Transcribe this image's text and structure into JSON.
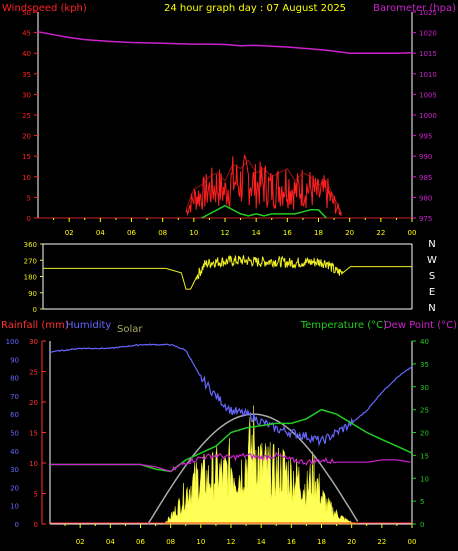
{
  "title": "24 hour graph day : 07 August 2025",
  "colors": {
    "windspeed": "#ff2020",
    "gust_green": "#22cc22",
    "barometer": "#cc22cc",
    "winddir": "#eeee22",
    "rainfall": "#ff3030",
    "humidity": "#6666ff",
    "solar": "#aaaa66",
    "solar_fill": "#ffff55",
    "temperature": "#22cc22",
    "dewpoint": "#cc22cc",
    "theory_curve": "#aaaaaa",
    "axis": "#ffffff",
    "grid": "#cc2222",
    "ticks": "#ffff00"
  },
  "chart_data": [
    {
      "type": "line",
      "name": "wind-baro",
      "ylabel_left": "Windspeed (kph)",
      "ylabel_right": "Barometer (hpa)",
      "left_ticks": [
        "50",
        "45",
        "40",
        "35",
        "30",
        "25",
        "20",
        "15",
        "10",
        "5",
        "0"
      ],
      "right_ticks": [
        "1025",
        "1020",
        "1015",
        "1010",
        "1005",
        "1000",
        "995",
        "990",
        "985",
        "980",
        "975"
      ],
      "ylim_left": [
        0,
        50
      ],
      "ylim_right": [
        975,
        1025
      ],
      "x_ticks": [
        "02",
        "04",
        "06",
        "08",
        "10",
        "12",
        "14",
        "16",
        "18",
        "20",
        "22",
        "00"
      ],
      "series": [
        {
          "name": "Barometer",
          "x": [
            0,
            1,
            2,
            3,
            4,
            5,
            6,
            7,
            8,
            9,
            10,
            11,
            12,
            13,
            14,
            15,
            16,
            17,
            18,
            19,
            20,
            21,
            22,
            23,
            24
          ],
          "values": [
            1020.2,
            1019.5,
            1018.8,
            1018.3,
            1018.0,
            1017.8,
            1017.6,
            1017.5,
            1017.4,
            1017.3,
            1017.2,
            1017.2,
            1017.1,
            1016.8,
            1016.9,
            1016.7,
            1016.5,
            1016.2,
            1015.9,
            1015.5,
            1015.0,
            1015.0,
            1015.0,
            1015.0,
            1015.1
          ]
        },
        {
          "name": "Windspeed",
          "x": [
            9.5,
            10,
            10.5,
            11,
            11.5,
            12,
            12.5,
            13,
            13.5,
            14,
            14.5,
            15,
            15.5,
            16,
            16.5,
            17,
            17.5,
            18,
            18.5,
            19,
            19.5
          ],
          "values": [
            2,
            7,
            8,
            10,
            11,
            9,
            13,
            12,
            14,
            11,
            12,
            10,
            11,
            12,
            9,
            11,
            10,
            8,
            9,
            5,
            1
          ]
        },
        {
          "name": "Gust",
          "x": [
            10.5,
            11,
            11.5,
            12,
            12.5,
            13,
            13.5,
            14,
            14.5,
            15,
            15.5,
            16,
            16.5,
            17,
            17.5,
            18,
            18.5
          ],
          "values": [
            0,
            1,
            2,
            3,
            2,
            1,
            0.5,
            1,
            0.5,
            1,
            1,
            1,
            1,
            1.5,
            2,
            2,
            0
          ]
        }
      ]
    },
    {
      "type": "line",
      "name": "wind-direction",
      "left_ticks": [
        "360",
        "270",
        "180",
        "90",
        "0"
      ],
      "right_labels": [
        "N",
        "W",
        "S",
        "E",
        "N"
      ],
      "ylim": [
        0,
        360
      ],
      "series": [
        {
          "name": "Wind direction",
          "x": [
            0,
            2,
            4,
            6,
            8,
            9,
            9.3,
            9.6,
            10,
            10.5,
            11,
            12,
            13,
            14,
            15,
            16,
            17,
            18,
            18.5,
            19,
            19.5,
            20,
            21,
            22,
            23,
            24
          ],
          "values": [
            225,
            225,
            225,
            225,
            225,
            200,
            110,
            110,
            180,
            245,
            260,
            265,
            270,
            260,
            265,
            255,
            260,
            260,
            255,
            210,
            200,
            235,
            235,
            235,
            235,
            235
          ]
        }
      ]
    },
    {
      "type": "line",
      "name": "rain-humidity-temp",
      "ylabel_rain": "Rainfall (mm)",
      "ylabel_humidity": "Humidity",
      "ylabel_solar": "Solar",
      "ylabel_temp": "Temperature (°C)",
      "ylabel_dew": "Dew Point (°C)",
      "humidity_ticks": [
        "100",
        "90",
        "80",
        "70",
        "60",
        "50",
        "40",
        "30",
        "20",
        "10",
        "0"
      ],
      "rain_ticks": [
        "30",
        "25",
        "20",
        "15",
        "10",
        "5",
        "0"
      ],
      "temp_ticks": [
        "40",
        "35",
        "30",
        "25",
        "20",
        "15",
        "10",
        "5",
        "0"
      ],
      "ylim_humidity": [
        0,
        100
      ],
      "ylim_rain": [
        0,
        30
      ],
      "ylim_temp": [
        0,
        40
      ],
      "x_ticks": [
        "02",
        "04",
        "06",
        "08",
        "10",
        "12",
        "14",
        "16",
        "18",
        "20",
        "22",
        "00"
      ],
      "series": [
        {
          "name": "Humidity",
          "x": [
            0,
            1,
            2,
            3,
            4,
            5,
            6,
            7,
            8,
            9,
            10,
            11,
            12,
            13,
            14,
            15,
            16,
            17,
            18,
            19,
            20,
            21,
            22,
            23,
            24
          ],
          "values": [
            94,
            95,
            96,
            96,
            96,
            97,
            98,
            98,
            98,
            95,
            80,
            70,
            62,
            60,
            56,
            52,
            50,
            48,
            45,
            50,
            55,
            62,
            72,
            80,
            86
          ]
        },
        {
          "name": "Temperature",
          "x": [
            0,
            2,
            4,
            6,
            7,
            8,
            9,
            10,
            11,
            12,
            13,
            14,
            15,
            16,
            17,
            18,
            19,
            20,
            21,
            22,
            23,
            24
          ],
          "values": [
            13,
            13,
            13,
            13,
            12,
            11.5,
            14,
            15.5,
            17,
            20,
            21,
            21.5,
            22,
            22,
            23,
            25,
            24,
            22,
            20,
            18.5,
            17,
            15.5
          ]
        },
        {
          "name": "Dew Point",
          "x": [
            0,
            2,
            4,
            6,
            7,
            8,
            9,
            10,
            11,
            12,
            13,
            14,
            15,
            16,
            17,
            18,
            19,
            20,
            21,
            22,
            23,
            24
          ],
          "values": [
            13,
            13,
            13,
            13,
            12.5,
            11.5,
            13.5,
            14.5,
            15,
            14.5,
            15,
            14.5,
            15,
            14,
            13.5,
            14,
            13.5,
            13.5,
            13.5,
            14,
            14,
            13.5
          ]
        },
        {
          "name": "Theoretical solar",
          "x": [
            6.5,
            8,
            9.5,
            11,
            12.5,
            13.5,
            14.5,
            16,
            17.5,
            19,
            20.5
          ],
          "values": [
            0,
            4,
            10,
            18,
            23,
            24,
            23,
            19,
            11,
            4,
            0
          ]
        },
        {
          "name": "Solar",
          "x": [
            7.5,
            8,
            8.5,
            9,
            9.5,
            10,
            10.5,
            11,
            11.5,
            12,
            12.5,
            13,
            13.5,
            14,
            14.5,
            15,
            15.5,
            16,
            16.5,
            17,
            17.5,
            18,
            18.5,
            19,
            19.5,
            20,
            20.5
          ],
          "values": [
            0,
            2,
            5,
            9,
            12,
            14,
            13,
            15,
            14,
            17,
            14,
            18,
            24,
            17,
            16,
            15,
            16,
            14,
            13,
            10,
            15,
            8,
            5,
            3,
            1.5,
            0.5,
            0
          ]
        }
      ]
    }
  ]
}
